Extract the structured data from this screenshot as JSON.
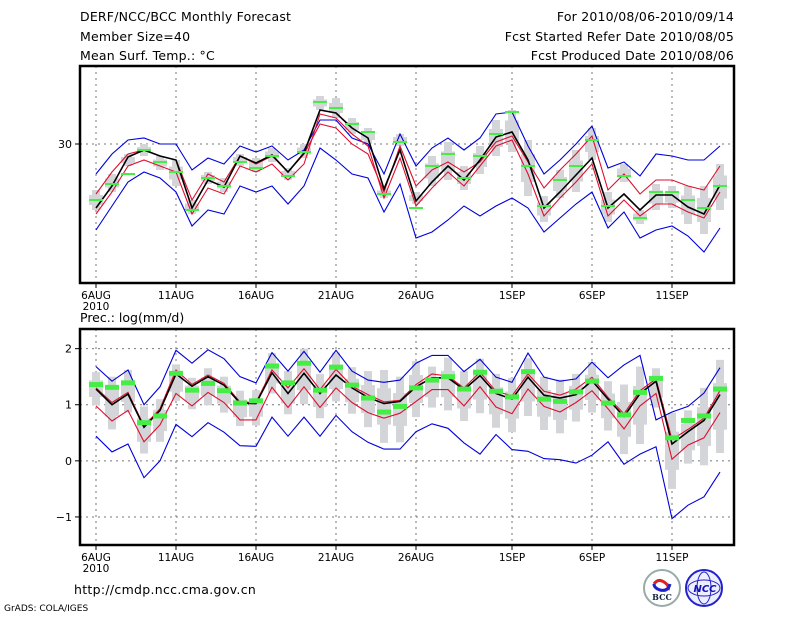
{
  "header": {
    "title": "DERF/NCC/BCC Monthly Forecast",
    "member_size": "Member Size=40",
    "variable_top": "Mean Surf. Temp.: °C",
    "period": "For 2010/08/06-2010/09/14",
    "start_date": "Fcst Started Refer Date 2010/08/05",
    "produced_date": "Fcst Produced Date 2010/08/06"
  },
  "footer": {
    "url": "http://cmdp.ncc.cma.gov.cn",
    "credit": "GrADS: COLA/IGES",
    "logos": [
      "BCC",
      "NCC"
    ]
  },
  "colors": {
    "outer_envelope": "#0000dd",
    "inner_envelope": "#dd1030",
    "ensemble_mean": "#000000",
    "observed": "#44ee44",
    "spread_bar": "#d4d5d9",
    "grid": "#777777"
  },
  "chart_data": [
    {
      "type": "line",
      "title": "Mean Surf. Temp.: °C",
      "xlabel": "",
      "ylabel": "°C",
      "x_start": "2010-08-06",
      "x": [
        "6AUG",
        "7AUG",
        "8AUG",
        "9AUG",
        "10AUG",
        "11AUG",
        "12AUG",
        "13AUG",
        "14AUG",
        "15AUG",
        "16AUG",
        "17AUG",
        "18AUG",
        "19AUG",
        "20AUG",
        "21AUG",
        "22AUG",
        "23AUG",
        "24AUG",
        "25AUG",
        "26AUG",
        "27AUG",
        "28AUG",
        "29AUG",
        "30AUG",
        "31AUG",
        "1SEP",
        "2SEP",
        "3SEP",
        "4SEP",
        "5SEP",
        "6SEP",
        "7SEP",
        "8SEP",
        "9SEP",
        "10SEP",
        "11SEP",
        "12SEP",
        "13SEP",
        "14SEP"
      ],
      "x_ticks": [
        "6AUG",
        "11AUG",
        "16AUG",
        "21AUG",
        "26AUG",
        "1SEP",
        "6SEP",
        "11SEP"
      ],
      "x_tick_sub": "2010",
      "y_ticks": [
        30
      ],
      "ylim": [
        23.05,
        33.9
      ],
      "grid": true,
      "series": [
        {
          "name": "upper envelope (max)",
          "color_key": "outer_envelope",
          "values": [
            28.5,
            29.5,
            30.2,
            30.3,
            30.0,
            30.0,
            28.7,
            29.3,
            29.0,
            29.9,
            29.6,
            29.9,
            29.2,
            29.7,
            31.2,
            31.2,
            30.3,
            30.0,
            28.5,
            30.5,
            28.9,
            29.8,
            30.3,
            29.7,
            30.3,
            31.5,
            31.6,
            29.9,
            28.5,
            29.2,
            30.0,
            30.9,
            28.8,
            29.1,
            28.4,
            29.5,
            29.4,
            29.2,
            29.2,
            29.9
          ]
        },
        {
          "name": "upper quantile",
          "color_key": "inner_envelope",
          "values": [
            27.5,
            28.6,
            29.5,
            29.7,
            29.4,
            29.2,
            27.2,
            28.5,
            28.1,
            29.4,
            29.0,
            29.4,
            28.6,
            29.5,
            31.0,
            30.8,
            30.0,
            29.5,
            27.6,
            29.9,
            27.9,
            28.7,
            29.1,
            28.6,
            29.1,
            30.1,
            30.4,
            29.1,
            27.8,
            28.7,
            29.5,
            30.4,
            27.7,
            28.5,
            27.5,
            28.2,
            28.2,
            27.9,
            27.7,
            28.9
          ]
        },
        {
          "name": "ensemble mean",
          "color_key": "ensemble_mean",
          "values": [
            26.8,
            27.9,
            29.35,
            29.7,
            29.4,
            29.2,
            26.8,
            28.2,
            27.85,
            29.4,
            29.05,
            29.45,
            28.6,
            29.55,
            31.7,
            31.55,
            30.8,
            30.3,
            27.75,
            29.7,
            27.15,
            28.1,
            28.9,
            28.2,
            29.2,
            30.35,
            30.6,
            29.2,
            26.8,
            27.6,
            28.45,
            29.3,
            26.8,
            27.5,
            26.7,
            27.45,
            27.45,
            26.85,
            26.5,
            27.95
          ]
        },
        {
          "name": "lower quantile",
          "color_key": "inner_envelope",
          "values": [
            26.5,
            27.6,
            28.9,
            29.2,
            28.9,
            28.6,
            26.5,
            27.8,
            27.5,
            28.9,
            28.6,
            29.0,
            28.2,
            29.0,
            31.5,
            31.3,
            30.5,
            29.9,
            27.3,
            29.3,
            26.9,
            27.8,
            28.6,
            27.9,
            28.9,
            29.9,
            30.2,
            28.5,
            26.4,
            27.3,
            28.1,
            29.0,
            26.4,
            27.2,
            26.4,
            27.0,
            27.0,
            26.6,
            26.3,
            27.6
          ]
        },
        {
          "name": "lower envelope (min)",
          "color_key": "outer_envelope",
          "values": [
            25.7,
            26.9,
            28.1,
            28.6,
            28.3,
            27.6,
            25.9,
            26.7,
            26.5,
            27.9,
            27.6,
            27.9,
            27.0,
            27.9,
            29.8,
            29.2,
            28.5,
            28.3,
            26.6,
            28.0,
            25.3,
            25.6,
            26.2,
            26.9,
            26.4,
            26.9,
            27.3,
            26.8,
            25.6,
            26.3,
            27.0,
            27.6,
            25.8,
            26.6,
            25.3,
            25.7,
            25.9,
            25.4,
            24.6,
            25.8
          ]
        }
      ],
      "observed": {
        "name": "observed",
        "color_key": "observed",
        "values": [
          27.2,
          28.0,
          28.5,
          29.7,
          29.1,
          28.6,
          26.7,
          28.3,
          27.9,
          29.1,
          28.8,
          29.4,
          28.4,
          29.6,
          32.1,
          31.8,
          31.0,
          30.6,
          27.5,
          30.1,
          26.8,
          28.9,
          29.5,
          28.3,
          29.4,
          30.5,
          31.6,
          28.9,
          26.9,
          28.2,
          28.9,
          30.2,
          26.9,
          28.4,
          26.3,
          27.6,
          27.6,
          27.2,
          26.8,
          27.9
        ]
      },
      "spread": {
        "name": "ensemble spread",
        "color_key": "spread_bar",
        "low": [
          26.7,
          27.6,
          28.9,
          29.4,
          28.7,
          27.9,
          26.5,
          28.0,
          27.6,
          28.9,
          28.6,
          29.1,
          28.2,
          29.3,
          31.7,
          31.3,
          30.5,
          30.0,
          27.3,
          29.9,
          27.0,
          27.9,
          28.2,
          27.7,
          28.5,
          29.4,
          29.6,
          27.4,
          26.1,
          27.3,
          27.6,
          29.2,
          26.1,
          28.1,
          26.0,
          26.7,
          26.8,
          26.0,
          25.5,
          26.7
        ],
        "high": [
          27.7,
          28.5,
          29.5,
          30.0,
          29.4,
          29.2,
          27.2,
          28.6,
          28.3,
          29.5,
          29.3,
          29.8,
          28.8,
          30.0,
          32.4,
          32.3,
          31.3,
          30.8,
          27.8,
          30.5,
          27.6,
          29.4,
          30.1,
          28.9,
          29.9,
          31.2,
          31.7,
          30.2,
          27.4,
          28.7,
          29.7,
          30.8,
          27.6,
          29.0,
          26.7,
          28.0,
          27.9,
          27.9,
          27.9,
          29.0
        ]
      }
    },
    {
      "type": "line",
      "title": "Prec.: log(mm/d)",
      "xlabel": "",
      "ylabel": "log(mm/d)",
      "x_start": "2010-08-06",
      "x": [
        "6AUG",
        "7AUG",
        "8AUG",
        "9AUG",
        "10AUG",
        "11AUG",
        "12AUG",
        "13AUG",
        "14AUG",
        "15AUG",
        "16AUG",
        "17AUG",
        "18AUG",
        "19AUG",
        "20AUG",
        "21AUG",
        "22AUG",
        "23AUG",
        "24AUG",
        "25AUG",
        "26AUG",
        "27AUG",
        "28AUG",
        "29AUG",
        "30AUG",
        "31AUG",
        "1SEP",
        "2SEP",
        "3SEP",
        "4SEP",
        "5SEP",
        "6SEP",
        "7SEP",
        "8SEP",
        "9SEP",
        "10SEP",
        "11SEP",
        "12SEP",
        "13SEP",
        "14SEP"
      ],
      "x_ticks": [
        "6AUG",
        "11AUG",
        "16AUG",
        "21AUG",
        "26AUG",
        "1SEP",
        "6SEP",
        "11SEP"
      ],
      "x_tick_sub": "2010",
      "y_ticks": [
        -1,
        0,
        1,
        2
      ],
      "ylim": [
        -1.5,
        2.35
      ],
      "grid": true,
      "series": [
        {
          "name": "upper envelope (max)",
          "color_key": "outer_envelope",
          "values": [
            1.68,
            1.42,
            1.62,
            1.0,
            1.32,
            1.97,
            1.74,
            1.98,
            1.82,
            1.5,
            1.39,
            1.93,
            1.6,
            1.95,
            1.58,
            1.97,
            1.6,
            1.44,
            1.4,
            1.44,
            1.74,
            1.88,
            1.88,
            1.59,
            1.81,
            1.49,
            1.4,
            1.92,
            1.49,
            1.42,
            1.46,
            1.76,
            1.48,
            1.71,
            1.88,
            0.73,
            0.87,
            0.97,
            1.21,
            1.66
          ]
        },
        {
          "name": "upper quantile",
          "color_key": "inner_envelope",
          "values": [
            1.3,
            1.04,
            1.22,
            0.62,
            0.93,
            1.62,
            1.36,
            1.53,
            1.38,
            1.05,
            1.04,
            1.62,
            1.3,
            1.64,
            1.27,
            1.63,
            1.33,
            1.18,
            1.05,
            1.08,
            1.36,
            1.55,
            1.51,
            1.3,
            1.58,
            1.24,
            1.16,
            1.55,
            1.24,
            1.17,
            1.28,
            1.49,
            1.13,
            0.84,
            1.25,
            1.46,
            0.38,
            0.56,
            0.76,
            1.25
          ]
        },
        {
          "name": "ensemble mean",
          "color_key": "ensemble_mean",
          "values": [
            1.28,
            1.0,
            1.19,
            0.6,
            0.9,
            1.55,
            1.33,
            1.5,
            1.35,
            1.03,
            1.02,
            1.57,
            1.2,
            1.56,
            1.2,
            1.53,
            1.3,
            1.13,
            1.02,
            1.06,
            1.32,
            1.48,
            1.48,
            1.27,
            1.52,
            1.2,
            1.1,
            1.49,
            1.17,
            1.12,
            1.18,
            1.43,
            1.1,
            0.79,
            1.2,
            1.42,
            0.3,
            0.52,
            0.72,
            1.18
          ]
        },
        {
          "name": "lower quantile",
          "color_key": "inner_envelope",
          "values": [
            0.98,
            0.71,
            0.9,
            0.34,
            0.64,
            1.2,
            0.98,
            1.22,
            1.04,
            0.73,
            0.73,
            1.31,
            0.95,
            1.32,
            0.95,
            1.3,
            1.04,
            0.86,
            0.76,
            0.85,
            1.06,
            1.27,
            1.27,
            0.98,
            1.32,
            0.96,
            0.84,
            1.28,
            0.97,
            0.87,
            1.04,
            1.25,
            0.93,
            0.57,
            0.98,
            1.2,
            0.03,
            0.28,
            0.41,
            0.86
          ]
        },
        {
          "name": "lower envelope (min)",
          "color_key": "outer_envelope",
          "values": [
            0.44,
            0.16,
            0.3,
            -0.3,
            0.0,
            0.65,
            0.43,
            0.68,
            0.51,
            0.27,
            0.26,
            0.78,
            0.44,
            0.78,
            0.44,
            0.81,
            0.52,
            0.33,
            0.21,
            0.21,
            0.52,
            0.66,
            0.58,
            0.32,
            0.12,
            0.47,
            0.2,
            0.17,
            0.04,
            0.02,
            -0.04,
            0.1,
            0.34,
            -0.06,
            0.12,
            0.25,
            -1.03,
            -0.79,
            -0.64,
            -0.2
          ]
        }
      ],
      "observed": {
        "name": "observed",
        "color_key": "observed",
        "values": [
          1.36,
          1.31,
          1.39,
          0.68,
          0.8,
          1.56,
          1.26,
          1.38,
          1.25,
          1.03,
          1.07,
          1.69,
          1.39,
          1.74,
          1.26,
          1.67,
          1.35,
          1.12,
          0.87,
          0.97,
          1.3,
          1.44,
          1.5,
          1.28,
          1.58,
          1.24,
          1.14,
          1.59,
          1.1,
          1.06,
          1.23,
          1.42,
          1.03,
          0.82,
          1.22,
          1.47,
          0.41,
          0.72,
          0.8,
          1.28
        ]
      },
      "spread": {
        "name": "ensemble spread",
        "color_key": "spread_bar",
        "low": [
          0.99,
          0.56,
          0.86,
          0.13,
          0.34,
          1.07,
          0.92,
          0.99,
          0.86,
          0.62,
          0.63,
          1.2,
          0.83,
          1.01,
          0.76,
          1.06,
          0.84,
          0.6,
          0.32,
          0.33,
          0.78,
          0.95,
          0.9,
          0.71,
          0.85,
          0.59,
          0.51,
          0.8,
          0.55,
          0.49,
          0.7,
          0.86,
          0.54,
          0.12,
          0.3,
          0.95,
          -0.5,
          -0.05,
          -0.08,
          0.14
        ]
      },
      "spread_high_note": "high bound below",
      "spread_high": [
        1.58,
        1.5,
        1.62,
        0.97,
        1.1,
        1.72,
        1.48,
        1.65,
        1.5,
        1.25,
        1.26,
        1.92,
        1.6,
        2.0,
        1.55,
        1.93,
        1.67,
        1.6,
        1.62,
        1.5,
        1.78,
        1.68,
        1.84,
        1.6,
        1.82,
        1.55,
        1.48,
        1.83,
        1.5,
        1.45,
        1.55,
        1.76,
        1.42,
        1.36,
        1.68,
        1.65,
        0.86,
        0.9,
        1.3,
        1.8
      ]
    }
  ]
}
